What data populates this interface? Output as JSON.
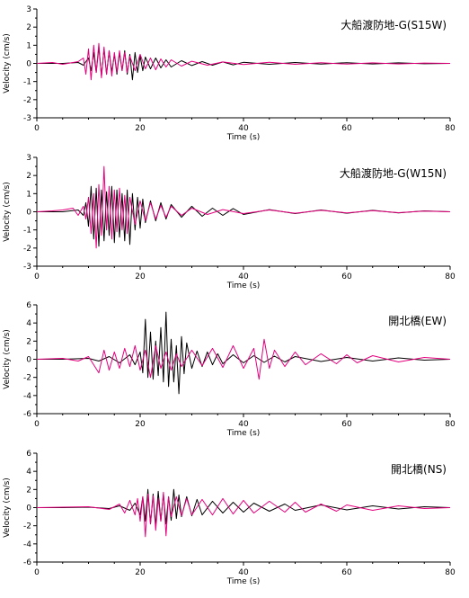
{
  "chart_data": [
    {
      "type": "line",
      "title": "大船渡防地-G(S15W)",
      "xlabel": "Time (s)",
      "ylabel": "Velocity (cm/s)",
      "xlim": [
        0,
        80
      ],
      "ylim": [
        -3,
        3
      ],
      "xticks": [
        0,
        20,
        40,
        60,
        80
      ],
      "yticks": [
        -3,
        -2,
        -1,
        0,
        1,
        2,
        3
      ],
      "grid": false,
      "series": [
        {
          "color": "#000000",
          "x": [
            0,
            5,
            8,
            9,
            10,
            10.5,
            11,
            11.5,
            12,
            12.5,
            13,
            13.5,
            14,
            14.5,
            15,
            15.5,
            16,
            16.5,
            17,
            17.5,
            18,
            18.5,
            19,
            19.5,
            20,
            20.5,
            21,
            22,
            23,
            24,
            25,
            26,
            28,
            30,
            32,
            34,
            36,
            38,
            40,
            45,
            50,
            55,
            60,
            65,
            70,
            75,
            80
          ],
          "y": [
            0,
            0,
            0.05,
            -0.1,
            0.3,
            -0.4,
            0.6,
            -0.5,
            0.9,
            -0.7,
            0.8,
            -0.6,
            0.7,
            -0.5,
            0.5,
            -0.6,
            0.6,
            -0.4,
            0.7,
            -0.6,
            0.5,
            -0.9,
            0.6,
            -0.5,
            0.4,
            -0.4,
            0.35,
            -0.3,
            0.3,
            -0.25,
            0.2,
            -0.2,
            0.15,
            -0.12,
            0.1,
            -0.1,
            0.08,
            -0.08,
            0.06,
            -0.05,
            0.05,
            -0.04,
            0.04,
            -0.03,
            0.03,
            -0.02,
            0
          ]
        },
        {
          "color": "#e6007e",
          "x": [
            0,
            3,
            5,
            8,
            9,
            9.5,
            10,
            10.5,
            11,
            11.5,
            12,
            12.5,
            13,
            13.5,
            14,
            14.5,
            15,
            15.5,
            16,
            16.5,
            17,
            17.5,
            18,
            19,
            20,
            21,
            22,
            23,
            24,
            25,
            26,
            28,
            30,
            33,
            36,
            40,
            45,
            50,
            55,
            60,
            65,
            70,
            75,
            80
          ],
          "y": [
            0,
            0.05,
            -0.05,
            0.1,
            0.3,
            -0.6,
            0.8,
            -0.9,
            1.0,
            -0.5,
            1.1,
            -0.8,
            0.9,
            -0.6,
            0.7,
            -0.7,
            0.6,
            -0.5,
            0.7,
            -0.4,
            0.6,
            -0.5,
            0.4,
            -0.4,
            0.5,
            -0.3,
            0.3,
            -0.35,
            0.25,
            -0.2,
            0.2,
            -0.15,
            0.12,
            -0.1,
            0.08,
            -0.06,
            0.06,
            -0.05,
            0.04,
            -0.04,
            0.03,
            -0.03,
            0.02,
            0
          ]
        }
      ]
    },
    {
      "type": "line",
      "title": "大船渡防地-G(W15N)",
      "xlabel": "Time (s)",
      "ylabel": "Velocity (cm/s)",
      "xlim": [
        0,
        80
      ],
      "ylim": [
        -3,
        3
      ],
      "xticks": [
        0,
        20,
        40,
        60,
        80
      ],
      "yticks": [
        -3,
        -2,
        -1,
        0,
        1,
        2,
        3
      ],
      "grid": false,
      "series": [
        {
          "color": "#000000",
          "x": [
            0,
            5,
            8,
            9,
            9.5,
            10,
            10.5,
            11,
            11.5,
            12,
            12.5,
            13,
            13.5,
            14,
            14.5,
            15,
            15.5,
            16,
            16.5,
            17,
            17.5,
            18,
            18.5,
            19,
            19.5,
            20,
            20.5,
            21,
            22,
            23,
            24,
            25,
            26,
            28,
            30,
            32,
            34,
            36,
            38,
            40,
            45,
            50,
            55,
            60,
            65,
            70,
            75,
            80
          ],
          "y": [
            0,
            0,
            0.1,
            -0.2,
            0.5,
            -0.8,
            1.4,
            -1.5,
            1.3,
            -1.9,
            1.2,
            -1.6,
            1.1,
            -1.3,
            1.4,
            -1.7,
            1.2,
            -1.4,
            1.0,
            -1.6,
            1.2,
            -1.8,
            1.0,
            -1.0,
            0.8,
            -0.9,
            0.7,
            -0.6,
            0.6,
            -0.5,
            0.5,
            -0.4,
            0.4,
            -0.3,
            0.3,
            -0.25,
            0.2,
            -0.2,
            0.18,
            -0.15,
            0.12,
            -0.1,
            0.1,
            -0.08,
            0.08,
            -0.06,
            0.05,
            0
          ]
        },
        {
          "color": "#e6007e",
          "x": [
            0,
            3,
            5,
            7,
            8,
            9,
            9.5,
            10,
            10.5,
            11,
            11.5,
            12,
            12.5,
            13,
            13.5,
            14,
            14.5,
            15,
            15.5,
            16,
            16.5,
            17,
            17.5,
            18,
            19,
            20,
            21,
            22,
            23,
            24,
            25,
            26,
            28,
            30,
            33,
            36,
            40,
            45,
            50,
            55,
            60,
            65,
            70,
            75,
            80
          ],
          "y": [
            0,
            0.05,
            0.1,
            0.2,
            -0.2,
            0.3,
            -0.4,
            0.8,
            -1.2,
            1.0,
            -2.0,
            1.5,
            -1.3,
            2.5,
            -1.0,
            1.4,
            -1.5,
            1.2,
            -1.1,
            1.3,
            -1.0,
            0.9,
            -1.2,
            0.8,
            -0.7,
            0.6,
            -0.5,
            0.5,
            -0.4,
            0.35,
            -0.3,
            0.3,
            -0.2,
            0.2,
            -0.15,
            0.12,
            -0.1,
            0.1,
            -0.08,
            0.08,
            -0.06,
            0.06,
            -0.05,
            0.04,
            0
          ]
        }
      ]
    },
    {
      "type": "line",
      "title": "開北橋(EW)",
      "xlabel": "Time (s)",
      "ylabel": "Velocity (cm/s)",
      "xlim": [
        0,
        80
      ],
      "ylim": [
        -6,
        6
      ],
      "xticks": [
        0,
        20,
        40,
        60,
        80
      ],
      "yticks": [
        -6,
        -4,
        -2,
        0,
        2,
        4,
        6
      ],
      "grid": false,
      "series": [
        {
          "color": "#000000",
          "x": [
            0,
            5,
            10,
            12,
            14,
            16,
            18,
            19,
            20,
            20.5,
            21,
            21.5,
            22,
            22.5,
            23,
            23.5,
            24,
            24.5,
            25,
            25.5,
            26,
            26.5,
            27,
            27.5,
            28,
            28.5,
            29,
            30,
            31,
            32,
            33,
            34,
            35,
            36,
            38,
            40,
            42,
            44,
            46,
            48,
            50,
            55,
            60,
            65,
            70,
            75,
            80
          ],
          "y": [
            0,
            0,
            0.1,
            -0.2,
            0.3,
            -0.4,
            0.5,
            -0.6,
            0.8,
            -1.5,
            4.4,
            -2.0,
            3.0,
            -2.2,
            2.0,
            -1.8,
            3.5,
            -2.5,
            5.2,
            -3.0,
            2.2,
            -2.5,
            1.5,
            -3.8,
            2.5,
            -1.6,
            1.8,
            -1.0,
            0.9,
            -0.8,
            0.8,
            -0.6,
            0.6,
            -0.5,
            0.5,
            -0.4,
            0.4,
            -0.35,
            0.35,
            -0.3,
            0.3,
            -0.25,
            0.2,
            -0.2,
            0.15,
            -0.1,
            0
          ]
        },
        {
          "color": "#e6007e",
          "x": [
            0,
            5,
            8,
            10,
            12,
            13,
            14,
            15,
            16,
            17,
            18,
            19,
            20,
            21,
            22,
            23,
            24,
            25,
            26,
            27,
            28,
            30,
            32,
            34,
            36,
            38,
            40,
            42,
            43,
            44,
            45,
            46,
            48,
            50,
            52,
            55,
            58,
            60,
            62,
            65,
            70,
            75,
            80
          ],
          "y": [
            0,
            0.1,
            -0.2,
            0.3,
            -1.5,
            1.0,
            -1.2,
            0.8,
            -1.0,
            1.2,
            -0.8,
            1.5,
            -1.2,
            1.0,
            -2.0,
            1.5,
            -1.0,
            0.8,
            -1.2,
            0.6,
            -0.8,
            1.0,
            -0.7,
            1.2,
            -0.9,
            1.5,
            -1.0,
            1.2,
            -2.2,
            2.2,
            -1.0,
            1.0,
            -0.8,
            0.8,
            -0.6,
            0.6,
            -0.5,
            0.5,
            -0.4,
            0.4,
            -0.3,
            0.2,
            0
          ]
        }
      ]
    },
    {
      "type": "line",
      "title": "開北橋(NS)",
      "xlabel": "Time (s)",
      "ylabel": "Velocity (cm/s)",
      "xlim": [
        0,
        80
      ],
      "ylim": [
        -6,
        6
      ],
      "xticks": [
        0,
        20,
        40,
        60,
        80
      ],
      "yticks": [
        -6,
        -4,
        -2,
        0,
        2,
        4,
        6
      ],
      "grid": false,
      "series": [
        {
          "color": "#000000",
          "x": [
            0,
            5,
            10,
            14,
            16,
            18,
            19,
            20,
            20.5,
            21,
            21.5,
            22,
            22.5,
            23,
            23.5,
            24,
            24.5,
            25,
            25.5,
            26,
            26.5,
            27,
            27.5,
            28,
            29,
            30,
            31,
            32,
            34,
            36,
            38,
            40,
            42,
            45,
            48,
            50,
            55,
            60,
            65,
            70,
            75,
            80
          ],
          "y": [
            0,
            0,
            0.05,
            -0.1,
            0.2,
            -0.3,
            0.5,
            -0.8,
            1.2,
            -1.5,
            2.0,
            -1.8,
            1.5,
            -2.0,
            1.8,
            -1.5,
            1.5,
            -1.8,
            1.2,
            -1.4,
            2.0,
            -1.2,
            1.4,
            -1.0,
            1.2,
            -0.9,
            0.9,
            -0.8,
            0.7,
            -0.6,
            0.6,
            -0.5,
            0.5,
            -0.4,
            0.4,
            -0.3,
            0.3,
            -0.25,
            0.2,
            -0.15,
            0.1,
            0
          ]
        },
        {
          "color": "#e6007e",
          "x": [
            0,
            5,
            10,
            14,
            16,
            17,
            18,
            19,
            19.5,
            20,
            20.5,
            21,
            21.5,
            22,
            22.5,
            23,
            23.5,
            24,
            24.5,
            25,
            25.5,
            26,
            27,
            28,
            29,
            30,
            32,
            34,
            36,
            38,
            40,
            42,
            45,
            48,
            50,
            52,
            55,
            58,
            60,
            65,
            70,
            75,
            80
          ],
          "y": [
            0,
            0.05,
            0.1,
            -0.2,
            0.4,
            -0.6,
            0.8,
            -0.8,
            1.0,
            -1.5,
            1.2,
            -3.2,
            1.5,
            -1.8,
            1.3,
            -2.5,
            1.0,
            -1.5,
            1.7,
            -3.1,
            1.2,
            -1.0,
            1.2,
            -0.9,
            1.0,
            -0.8,
            0.9,
            -0.8,
            1.0,
            -0.7,
            0.8,
            -0.6,
            0.7,
            -0.5,
            0.6,
            -0.5,
            0.4,
            -0.4,
            0.3,
            -0.3,
            0.2,
            -0.1,
            0
          ]
        }
      ]
    }
  ]
}
